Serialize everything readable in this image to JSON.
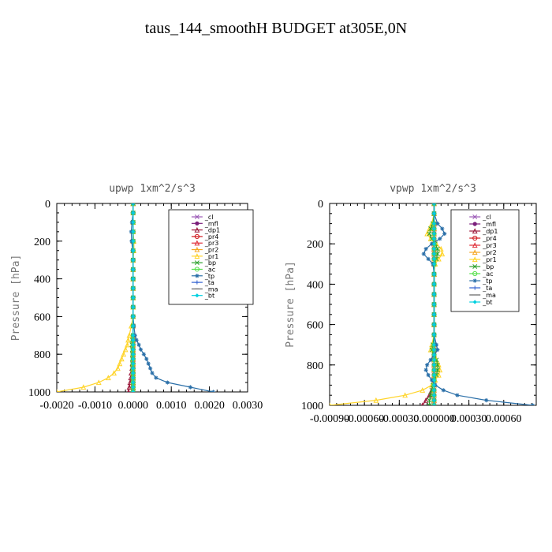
{
  "title": "taus_144_smoothH  BUDGET at305E,0N",
  "chart_data": [
    {
      "type": "line",
      "title": "upwp   1xm^2/s^3",
      "ylabel": "Pressure [hPa]",
      "xlabel": "",
      "xlim": [
        -0.002,
        0.003
      ],
      "ylim": [
        1000,
        0
      ],
      "xticks": [
        -0.002,
        -0.001,
        0.0,
        0.001,
        0.002,
        0.003
      ],
      "xtick_labels": [
        "-0.0020",
        "-0.0010",
        "0.0000",
        "0.0010",
        "0.0020",
        "0.0030"
      ],
      "yticks": [
        0,
        200,
        400,
        600,
        800,
        1000
      ],
      "ytick_labels": [
        "0",
        "200",
        "400",
        "600",
        "800",
        "1000"
      ],
      "grid": false,
      "legend_position": "top-right",
      "y": [
        0,
        50,
        100,
        150,
        200,
        250,
        300,
        350,
        400,
        450,
        500,
        550,
        600,
        650,
        700,
        725,
        750,
        775,
        800,
        825,
        850,
        875,
        900,
        925,
        950,
        975,
        1000
      ],
      "series": [
        {
          "name": "_cl",
          "color": "#9b59b6",
          "marker": "x",
          "values": [
            0,
            0,
            0,
            0,
            0,
            0,
            0,
            0,
            0,
            0,
            0,
            0,
            0,
            0,
            0,
            0,
            0,
            0,
            0,
            0,
            0,
            0,
            0,
            0,
            0,
            0,
            0
          ]
        },
        {
          "name": "_mfl",
          "color": "#7b1f7b",
          "marker": "dot",
          "values": [
            0,
            0,
            0,
            0,
            0,
            0,
            0,
            0,
            0,
            0,
            0,
            0,
            0,
            0,
            0,
            0,
            0,
            0,
            0,
            0,
            0,
            0,
            0,
            0,
            0,
            0,
            0
          ]
        },
        {
          "name": "_dp1",
          "color": "#9c1a3c",
          "marker": "tri",
          "values": [
            0,
            0,
            0,
            0,
            0,
            0,
            0,
            0,
            0,
            0,
            0,
            0,
            0,
            0,
            0,
            0,
            0,
            0,
            0,
            0,
            -2e-05,
            -3e-05,
            -5e-05,
            -6e-05,
            -8e-05,
            -0.0001,
            -0.00012
          ]
        },
        {
          "name": "_pr4",
          "color": "#d0191e",
          "marker": "circ",
          "values": [
            0,
            0,
            0,
            0,
            0,
            0,
            0,
            0,
            0,
            0,
            0,
            0,
            0,
            0,
            0,
            0,
            0,
            0,
            0,
            0,
            0,
            0,
            0,
            0,
            0,
            0,
            0
          ]
        },
        {
          "name": "_pr3",
          "color": "#e0303a",
          "marker": "tri",
          "values": [
            0,
            0,
            0,
            0,
            0,
            0,
            0,
            0,
            0,
            0,
            0,
            0,
            0,
            0,
            0,
            0,
            0,
            0,
            0,
            0,
            0,
            0,
            0,
            0,
            0,
            0,
            0
          ]
        },
        {
          "name": "_pr2",
          "color": "#f5a623",
          "marker": "tri",
          "values": [
            0,
            0,
            0,
            0,
            0,
            0,
            0,
            0,
            0,
            0,
            0,
            0,
            0,
            0,
            0,
            0,
            0,
            0,
            0,
            0,
            0,
            0,
            0,
            0,
            0,
            0,
            0
          ]
        },
        {
          "name": "_pr1",
          "color": "#ffd42a",
          "marker": "tri",
          "values": [
            0,
            0,
            0,
            0,
            2e-05,
            2e-05,
            0,
            0,
            0,
            0,
            0,
            0,
            0,
            -5e-05,
            -0.0001,
            -0.00013,
            -0.00015,
            -0.0002,
            -0.00025,
            -0.0003,
            -0.00035,
            -0.0004,
            -0.0005,
            -0.00065,
            -0.0009,
            -0.0013,
            -0.002
          ]
        },
        {
          "name": "_bp",
          "color": "#2ca02c",
          "marker": "x",
          "values": [
            0,
            0,
            0,
            0,
            0,
            0,
            0,
            0,
            0,
            0,
            0,
            0,
            0,
            0,
            0,
            -2e-05,
            -3e-05,
            -2e-05,
            -2e-05,
            -2e-05,
            -2e-05,
            -2e-05,
            -1e-05,
            0,
            0,
            0,
            0
          ]
        },
        {
          "name": "_ac",
          "color": "#55e04a",
          "marker": "circ",
          "values": [
            0,
            0,
            0,
            0,
            0,
            0,
            0,
            0,
            0,
            0,
            0,
            0,
            0,
            0,
            0,
            0,
            0,
            0,
            0,
            0,
            0,
            0,
            0,
            0,
            0,
            0,
            0
          ]
        },
        {
          "name": "_tp",
          "color": "#2a6fa8",
          "marker": "star",
          "values": [
            0,
            0,
            -3e-05,
            -5e-05,
            -4e-05,
            -1e-05,
            0,
            0,
            0,
            0,
            0,
            0,
            0,
            2e-05,
            5e-05,
            9e-05,
            0.00015,
            0.0002,
            0.00028,
            0.00035,
            0.0004,
            0.00045,
            0.0005,
            0.0006,
            0.0009,
            0.0015,
            0.0021
          ]
        },
        {
          "name": "_ta",
          "color": "#3060d0",
          "marker": "plus",
          "values": [
            0,
            0,
            0,
            0,
            0,
            0,
            0,
            0,
            0,
            0,
            0,
            0,
            0,
            0,
            0,
            0,
            0,
            0,
            0,
            0,
            0,
            0,
            0,
            0,
            0,
            0,
            0
          ]
        },
        {
          "name": "_ma",
          "color": "#606060",
          "marker": "dash",
          "values": [
            0,
            0,
            0,
            0,
            0,
            0,
            0,
            0,
            0,
            0,
            0,
            0,
            0,
            0,
            0,
            0,
            0,
            0,
            0,
            0,
            0,
            0,
            0,
            0,
            0,
            0,
            0
          ]
        },
        {
          "name": "_bt",
          "color": "#00d0e0",
          "marker": "diamond",
          "values": [
            0,
            0,
            0,
            0,
            0,
            0,
            0,
            0,
            0,
            0,
            0,
            0,
            0,
            0,
            0,
            0,
            0,
            0,
            0,
            0,
            0,
            0,
            0,
            0,
            0,
            0,
            0
          ]
        }
      ]
    },
    {
      "type": "line",
      "title": "vpwp   1xm^2/s^3",
      "ylabel": "Pressure [hPa]",
      "xlabel": "",
      "xlim": [
        -0.0009,
        0.00088
      ],
      "ylim": [
        1000,
        0
      ],
      "xticks": [
        -0.0009,
        -0.0006,
        -0.0003,
        0.0,
        0.0003,
        0.0006
      ],
      "xtick_labels": [
        "-0.00090",
        "-0.00060",
        "-0.00030",
        "0.000000",
        "0.00030",
        "0.00060"
      ],
      "yticks": [
        0,
        200,
        400,
        600,
        800,
        1000
      ],
      "ytick_labels": [
        "0",
        "200",
        "400",
        "600",
        "800",
        "1000"
      ],
      "grid": false,
      "legend_position": "top-right",
      "y": [
        0,
        50,
        100,
        125,
        150,
        175,
        200,
        225,
        250,
        275,
        300,
        350,
        400,
        450,
        500,
        550,
        600,
        650,
        700,
        725,
        750,
        775,
        800,
        825,
        850,
        875,
        900,
        925,
        950,
        975,
        1000
      ],
      "series": [
        {
          "name": "_cl",
          "color": "#9b59b6",
          "marker": "x",
          "values": [
            0,
            0,
            0,
            0,
            0,
            0,
            0,
            0,
            0,
            0,
            0,
            0,
            0,
            0,
            0,
            0,
            0,
            0,
            0,
            0,
            0,
            0,
            0,
            0,
            0,
            0,
            0,
            0,
            0,
            0,
            0
          ]
        },
        {
          "name": "_mfl",
          "color": "#7b1f7b",
          "marker": "dot",
          "values": [
            0,
            0,
            0,
            0,
            0,
            0,
            0,
            0,
            0,
            0,
            0,
            0,
            0,
            0,
            0,
            0,
            0,
            0,
            0,
            0,
            0,
            0,
            0,
            0,
            0,
            0,
            0,
            0,
            0,
            0,
            0
          ]
        },
        {
          "name": "_dp1",
          "color": "#9c1a3c",
          "marker": "tri",
          "values": [
            0,
            0,
            0,
            0,
            0,
            0,
            0,
            0,
            0,
            0,
            0,
            0,
            0,
            0,
            0,
            0,
            0,
            0,
            0,
            0,
            0,
            0,
            0,
            0,
            0,
            0,
            -1e-05,
            -2e-05,
            -4e-05,
            -7e-05,
            -0.0001
          ]
        },
        {
          "name": "_pr4",
          "color": "#d0191e",
          "marker": "circ",
          "values": [
            0,
            0,
            0,
            0,
            0,
            0,
            0,
            0,
            0,
            0,
            0,
            0,
            0,
            0,
            0,
            0,
            0,
            0,
            0,
            0,
            0,
            0,
            0,
            0,
            0,
            0,
            0,
            0,
            0,
            0,
            0
          ]
        },
        {
          "name": "_pr3",
          "color": "#e0303a",
          "marker": "tri",
          "values": [
            0,
            0,
            0,
            0,
            0,
            0,
            0,
            0,
            0,
            0,
            0,
            0,
            0,
            0,
            0,
            0,
            0,
            0,
            0,
            0,
            0,
            0,
            0,
            0,
            0,
            0,
            0,
            0,
            0,
            0,
            0
          ]
        },
        {
          "name": "_pr2",
          "color": "#f5a623",
          "marker": "tri",
          "values": [
            0,
            0,
            0,
            0,
            0,
            0,
            0,
            0,
            0,
            0,
            0,
            0,
            0,
            0,
            0,
            0,
            0,
            0,
            0,
            0,
            0,
            0,
            0,
            0,
            0,
            0,
            0,
            0,
            0,
            0,
            0
          ]
        },
        {
          "name": "_pr1",
          "color": "#ffd42a",
          "marker": "tri",
          "values": [
            0,
            0,
            -2e-05,
            -4e-05,
            -6e-05,
            -3e-05,
            2e-05,
            6e-05,
            7e-05,
            4e-05,
            1e-05,
            0,
            0,
            0,
            0,
            0,
            0,
            0,
            -2e-05,
            -3e-05,
            0,
            2e-05,
            4e-05,
            5e-05,
            4e-05,
            1e-05,
            -2e-05,
            -0.0001,
            -0.00025,
            -0.0005,
            -0.0009
          ]
        },
        {
          "name": "_bp",
          "color": "#2ca02c",
          "marker": "x",
          "values": [
            0,
            0,
            -1e-05,
            -3e-05,
            -4e-05,
            -2e-05,
            1e-05,
            3e-05,
            3e-05,
            2e-05,
            0,
            0,
            0,
            0,
            0,
            0,
            0,
            0,
            -1e-05,
            -2e-05,
            0,
            2e-05,
            3e-05,
            3e-05,
            2e-05,
            0,
            -1e-05,
            -2e-05,
            -3e-05,
            -4e-05,
            -4e-05
          ]
        },
        {
          "name": "_ac",
          "color": "#55e04a",
          "marker": "circ",
          "values": [
            0,
            0,
            0,
            0,
            0,
            0,
            0,
            0,
            0,
            0,
            0,
            0,
            0,
            0,
            0,
            0,
            0,
            0,
            0,
            0,
            0,
            0,
            0,
            0,
            0,
            0,
            0,
            0,
            0,
            0,
            0
          ]
        },
        {
          "name": "_tp",
          "color": "#2a6fa8",
          "marker": "star",
          "values": [
            0,
            0,
            3e-05,
            7e-05,
            9e-05,
            5e-05,
            -2e-05,
            -7e-05,
            -9e-05,
            -5e-05,
            -1e-05,
            0,
            0,
            0,
            0,
            0,
            0,
            0,
            2e-05,
            3e-05,
            0,
            -3e-05,
            -6e-05,
            -7e-05,
            -5e-05,
            -2e-05,
            1e-05,
            8e-05,
            0.0002,
            0.00045,
            0.00085
          ]
        },
        {
          "name": "_ta",
          "color": "#3060d0",
          "marker": "plus",
          "values": [
            0,
            0,
            0,
            0,
            0,
            0,
            0,
            0,
            0,
            0,
            0,
            0,
            0,
            0,
            0,
            0,
            0,
            0,
            0,
            0,
            0,
            0,
            0,
            0,
            0,
            0,
            0,
            0,
            0,
            0,
            0
          ]
        },
        {
          "name": "_ma",
          "color": "#606060",
          "marker": "dash",
          "values": [
            0,
            0,
            0,
            0,
            0,
            0,
            0,
            0,
            0,
            0,
            0,
            0,
            0,
            0,
            0,
            0,
            0,
            0,
            0,
            0,
            0,
            0,
            0,
            0,
            0,
            0,
            0,
            0,
            0,
            0,
            0
          ]
        },
        {
          "name": "_bt",
          "color": "#00d0e0",
          "marker": "diamond",
          "values": [
            0,
            0,
            0,
            0,
            0,
            0,
            0,
            0,
            0,
            0,
            0,
            0,
            0,
            0,
            0,
            0,
            0,
            0,
            0,
            0,
            0,
            0,
            0,
            0,
            0,
            0,
            0,
            0,
            0,
            0,
            0
          ]
        }
      ]
    }
  ]
}
